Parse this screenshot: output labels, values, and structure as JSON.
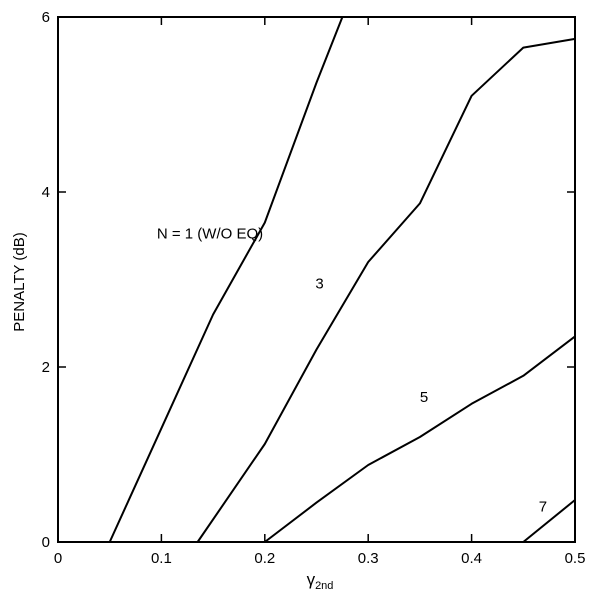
{
  "chart_data": {
    "type": "line",
    "title": "",
    "xlabel": "γ",
    "xlabel_subscript": "2nd",
    "ylabel": "PENALTY (dB)",
    "xlim": [
      0,
      0.5
    ],
    "ylim": [
      0,
      6
    ],
    "x_ticks": [
      0,
      0.1,
      0.2,
      0.3,
      0.4,
      0.5
    ],
    "x_tick_labels": [
      "0",
      "0.1",
      "0.2",
      "0.3",
      "0.4",
      "0.5"
    ],
    "y_ticks": [
      0,
      2,
      4,
      6
    ],
    "y_tick_labels": [
      "0",
      "2",
      "4",
      "6"
    ],
    "grid": false,
    "series": [
      {
        "name": "N = 1 (W/O EQ)",
        "x": [
          0.05,
          0.1,
          0.15,
          0.2,
          0.25,
          0.275
        ],
        "y": [
          0,
          1.3,
          2.6,
          3.65,
          5.25,
          6.0
        ]
      },
      {
        "name": "3",
        "x": [
          0.135,
          0.2,
          0.25,
          0.3,
          0.35,
          0.4,
          0.45,
          0.5
        ],
        "y": [
          0,
          1.12,
          2.2,
          3.2,
          3.87,
          5.1,
          5.65,
          5.75
        ]
      },
      {
        "name": "5",
        "x": [
          0.2,
          0.25,
          0.3,
          0.35,
          0.4,
          0.45,
          0.5
        ],
        "y": [
          0,
          0.45,
          0.88,
          1.2,
          1.58,
          1.9,
          2.35
        ]
      },
      {
        "name": "7",
        "x": [
          0.45,
          0.5
        ],
        "y": [
          0,
          0.48
        ]
      }
    ]
  }
}
